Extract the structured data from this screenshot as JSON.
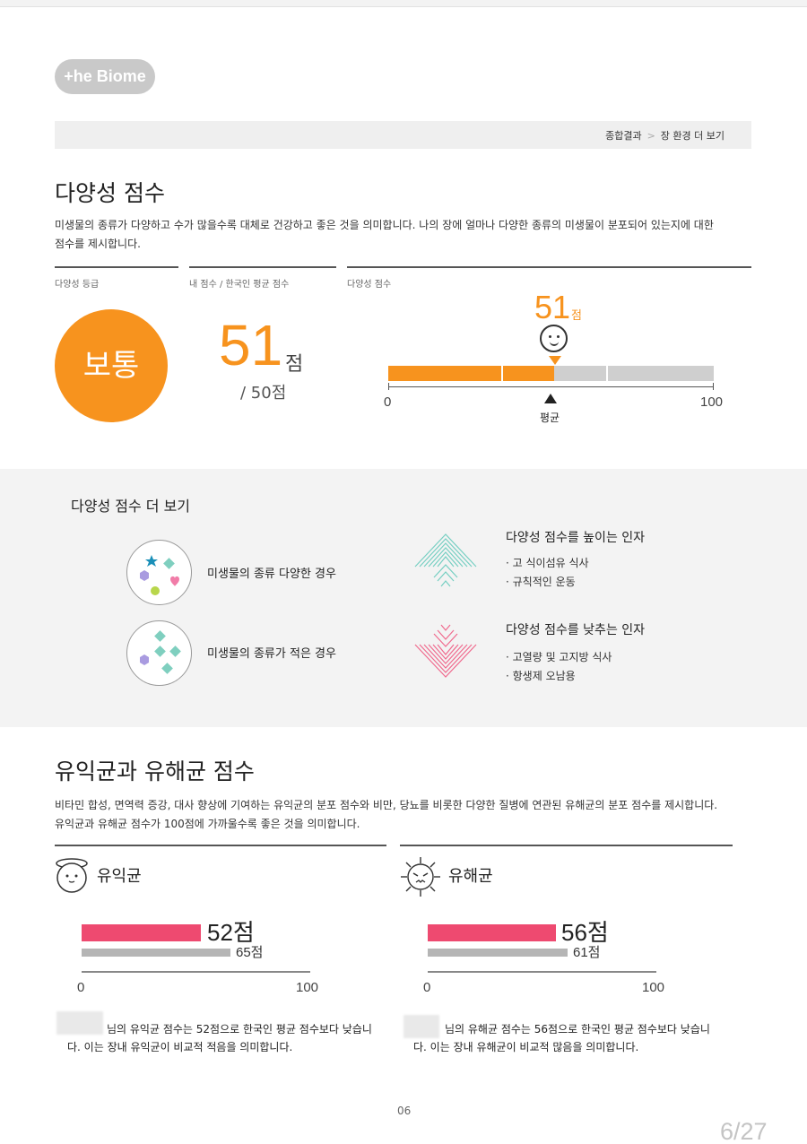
{
  "brand": {
    "logo_text": "+he Biome"
  },
  "breadcrumb": {
    "items": [
      "종합결과",
      "장 환경 더 보기"
    ],
    "separator": ">"
  },
  "diversity": {
    "title": "다양성 점수",
    "description": [
      "미생물의 종류가 다양하고 수가 많을수록 대체로 건강하고 좋은 것을 의미합니다. 나의 장에 얼마나 다양한 종류의 미생물이 분포되어 있는지에 대한",
      "점수를 제시합니다."
    ],
    "col_grade_label": "다양성 등급",
    "col_score_label": "내 점수 / 한국인 평균 점수",
    "col_bar_label": "다양성 점수",
    "grade": "보통",
    "my_score": "51",
    "score_unit": "점",
    "avg_score_text": "/ 50점",
    "bar": {
      "value": 51,
      "average": 50,
      "min": 0,
      "max": 100,
      "min_label": "0",
      "max_label": "100",
      "value_label": "51",
      "value_unit": "점",
      "avg_label": "평균",
      "accent": "#f7931e"
    }
  },
  "more": {
    "title": "다양성 점수 더 보기",
    "case_many": "미생물의 종류 다양한 경우",
    "case_few": "미생물의 종류가 적은 경우",
    "raise_title": "다양성 점수를 높이는 인자",
    "raise_items": [
      "· 고 식이섬유 식사",
      "· 규칙적인 운동"
    ],
    "lower_title": "다양성 점수를 낮추는 인자",
    "lower_items": [
      "· 고열량 및 고지방 식사",
      "· 항생제 오남용"
    ]
  },
  "bacteria": {
    "title": "유익균과 유해균 점수",
    "description": [
      "비타민 합성, 면역력 증강, 대사 향상에 기여하는 유익균의 분포 점수와 비만, 당뇨를 비롯한 다양한 질병에 연관된 유해균의 분포 점수를 제시합니다.",
      "유익균과 유해균 점수가 100점에 가까울수록 좋은 것을 의미합니다."
    ],
    "good": {
      "label": "유익균",
      "score": 52,
      "avg": 65,
      "score_text": "52점",
      "avg_text": "65점",
      "min_label": "0",
      "max_label": "100",
      "note": [
        "님의 유익균 점수는 52점으로 한국인 평균 점수보다 낮습니",
        "다. 이는 장내 유익균이 비교적 적음을 의미합니다."
      ]
    },
    "bad": {
      "label": "유해균",
      "score": 56,
      "avg": 61,
      "score_text": "56점",
      "avg_text": "61점",
      "min_label": "0",
      "max_label": "100",
      "note": [
        "님의 유해균 점수는 56점으로 한국인 평균 점수보다 낮습니",
        "다. 이는 장내 유해균이 비교적 많음을 의미합니다."
      ]
    },
    "bar_color": "#ee4a70",
    "avg_color": "#b5b5b5"
  },
  "footer": {
    "page_number": "06",
    "page_count": "6/27"
  }
}
